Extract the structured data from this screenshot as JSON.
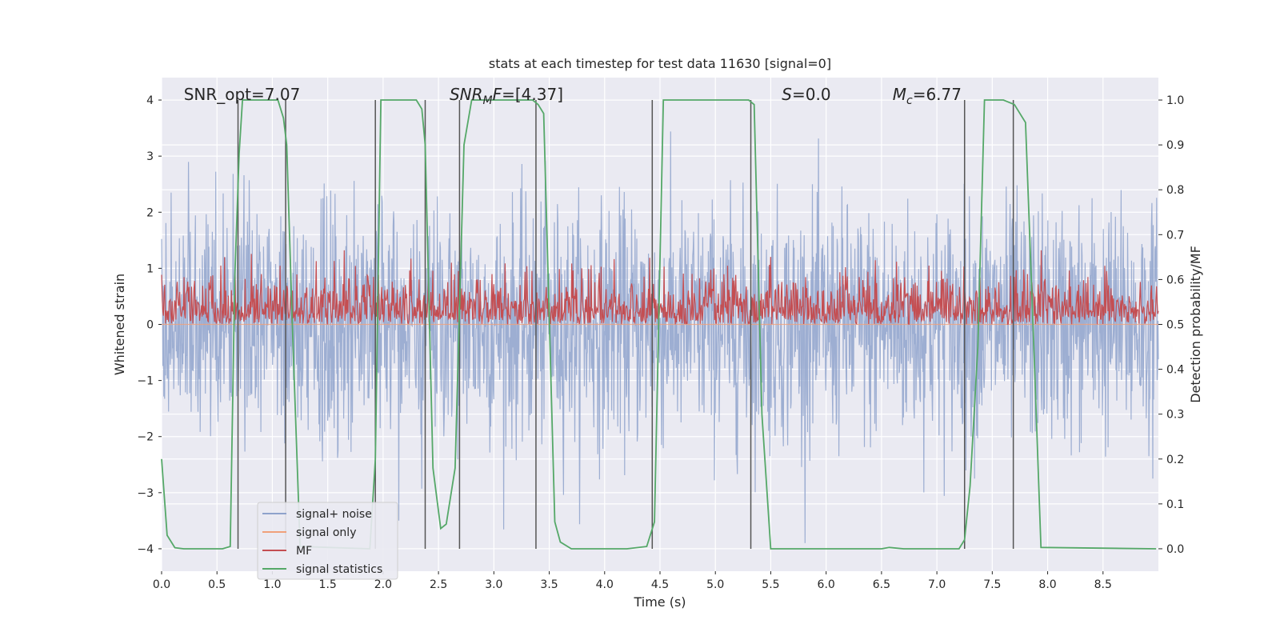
{
  "chart_data": {
    "type": "line",
    "title": "stats at each timestep for test data 11630 [signal=0]",
    "xlabel": "Time (s)",
    "ylabel": "Whitened strain",
    "y2label": "Detection probability/MF",
    "xlim": [
      0,
      9.0
    ],
    "ylim": [
      -4.4,
      4.4
    ],
    "y2lim": [
      -0.05,
      1.05
    ],
    "grid": true,
    "legend_position": "lower-left",
    "xticks": [
      "0.0",
      "0.5",
      "1.0",
      "1.5",
      "2.0",
      "2.5",
      "3.0",
      "3.5",
      "4.0",
      "4.5",
      "5.0",
      "5.5",
      "6.0",
      "6.5",
      "7.0",
      "7.5",
      "8.0",
      "8.5"
    ],
    "yticks": [
      "−4",
      "−3",
      "−2",
      "−1",
      "0",
      "1",
      "2",
      "3",
      "4"
    ],
    "y2ticks": [
      "0.0",
      "0.1",
      "0.2",
      "0.3",
      "0.4",
      "0.5",
      "0.6",
      "0.7",
      "0.8",
      "0.9",
      "1.0"
    ],
    "annotations": [
      {
        "text": "SNR_opt=7.07",
        "x": 0.2
      },
      {
        "text": "SNR_MF=[4.37]",
        "x": 2.6
      },
      {
        "text": "S=0.0",
        "x": 5.6
      },
      {
        "text": "M_c=6.77",
        "x": 6.6
      }
    ],
    "colors": {
      "plot_bg": "#eaeaf2",
      "noise": "#8fa3cc",
      "signal": "#f0a07a",
      "mf": "#c44e52",
      "stats": "#55a868",
      "vline": "#555555",
      "grid": "#ffffff"
    },
    "series": [
      {
        "name": "signal+ noise",
        "kind": "noise",
        "envelope": "random, approximately ±2 with peaks to ±3.7",
        "axis": "left"
      },
      {
        "name": "signal only",
        "kind": "flat",
        "y": 0,
        "axis": "left"
      },
      {
        "name": "MF",
        "kind": "noise",
        "envelope": "random, approximately 0.5 to 0.62 with peaks to 0.66",
        "axis": "right"
      },
      {
        "name": "signal statistics",
        "kind": "line",
        "axis": "right",
        "x": [
          0.0,
          0.05,
          0.12,
          0.2,
          0.55,
          0.62,
          0.66,
          0.7,
          0.73,
          0.77,
          1.05,
          1.1,
          1.13,
          1.18,
          1.25,
          1.88,
          1.93,
          1.98,
          2.02,
          2.3,
          2.35,
          2.38,
          2.45,
          2.52,
          2.57,
          2.65,
          2.73,
          2.8,
          3.35,
          3.4,
          3.45,
          3.55,
          3.6,
          3.7,
          4.2,
          4.38,
          4.45,
          4.53,
          5.3,
          5.35,
          5.42,
          5.5,
          6.5,
          6.57,
          6.7,
          7.2,
          7.25,
          7.3,
          7.37,
          7.43,
          7.6,
          7.7,
          7.8,
          7.88,
          7.94,
          8.98
        ],
        "y": [
          0.2,
          0.03,
          0.0025,
          0.0,
          0.0,
          0.005,
          0.6,
          0.88,
          1.0,
          1.0,
          1.0,
          0.96,
          0.9,
          0.5,
          0.005,
          0.0,
          0.2,
          1.0,
          1.0,
          1.0,
          0.98,
          0.9,
          0.18,
          0.045,
          0.055,
          0.18,
          0.9,
          1.0,
          1.0,
          0.99,
          0.97,
          0.06,
          0.015,
          0.0,
          0.0,
          0.005,
          0.06,
          1.0,
          1.0,
          0.99,
          0.3,
          0.0,
          0.0,
          0.003,
          0.0,
          0.0,
          0.02,
          0.14,
          0.45,
          1.0,
          1.0,
          0.99,
          0.95,
          0.42,
          0.003,
          0.0
        ]
      }
    ],
    "vlines": [
      0.69,
      1.12,
      1.93,
      2.38,
      2.69,
      3.38,
      4.43,
      5.32,
      7.25,
      7.69
    ],
    "legend": [
      "signal+ noise",
      "signal only",
      "MF",
      "signal statistics"
    ]
  }
}
